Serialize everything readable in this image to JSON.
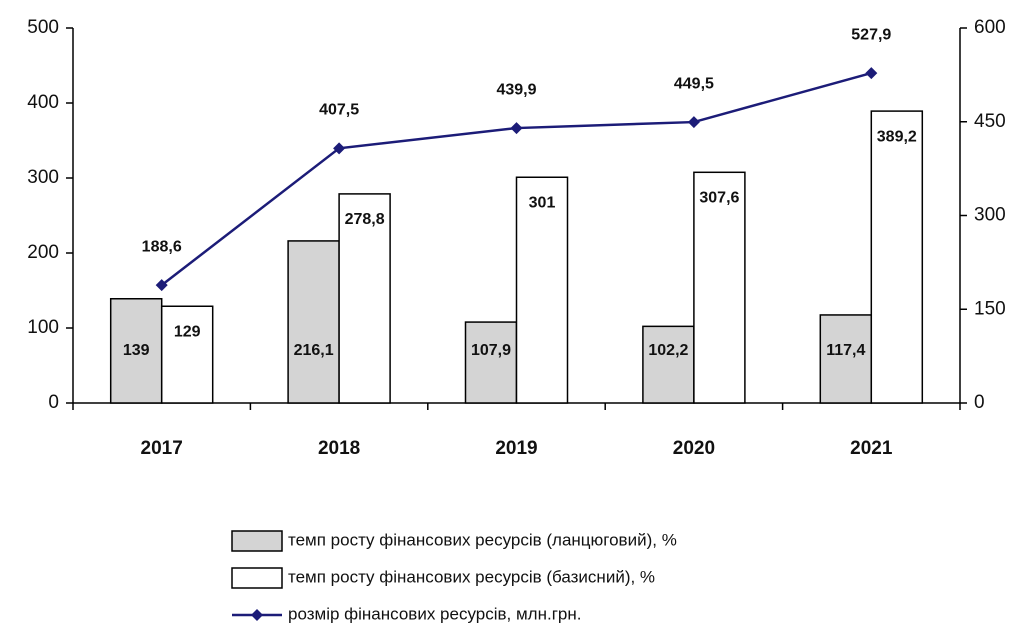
{
  "chart_data": {
    "type": "bar",
    "categories": [
      "2017",
      "2018",
      "2019",
      "2020",
      "2021"
    ],
    "series": [
      {
        "name": "темп росту фінансових ресурсів (ланцюговий), %",
        "type": "bar",
        "color": "#d4d4d4",
        "values": [
          139,
          216.1,
          107.9,
          102.2,
          117.4
        ],
        "value_labels": [
          "139",
          "216,1",
          "107,9",
          "102,2",
          "117,4"
        ]
      },
      {
        "name": "темп росту фінансових ресурсів (базисний), %",
        "type": "bar",
        "color": "#ffffff",
        "values": [
          129,
          278.8,
          301,
          307.6,
          389.2
        ],
        "value_labels": [
          "129",
          "278,8",
          "301",
          "307,6",
          "389,2"
        ]
      },
      {
        "name": "розмір фінансових ресурсів, млн.грн.",
        "type": "line",
        "color": "#1c1c78",
        "axis": "y2",
        "values": [
          188.6,
          407.5,
          439.9,
          449.5,
          527.9
        ],
        "value_labels": [
          "188,6",
          "407,5",
          "439,9",
          "449,5",
          "527,9"
        ]
      }
    ],
    "ylim": [
      0,
      500
    ],
    "yticks": [
      0,
      100,
      200,
      300,
      400,
      500
    ],
    "y2lim": [
      0,
      600
    ],
    "y2ticks": [
      0,
      150,
      300,
      450,
      600
    ],
    "grid": false
  }
}
